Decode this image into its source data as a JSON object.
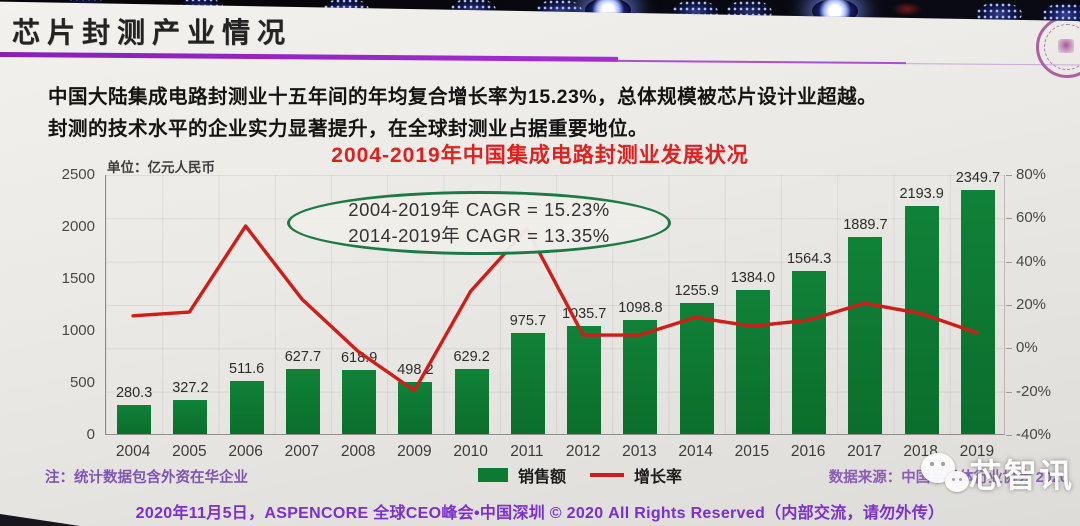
{
  "header": {
    "title": "芯片封测产业情况"
  },
  "intro": {
    "line1": "中国大陆集成电路封测业十五年间的年均复合增长率为15.23%，总体规模被芯片设计业超越。",
    "line2": "封测的技术水平的企业实力显著提升，在全球封测业占据重要地位。"
  },
  "chart_data": {
    "type": "combo-bar-line",
    "title": "2004-2019年中国集成电路封测业发展状况",
    "unit_label": "单位：亿元人民币",
    "categories": [
      "2004",
      "2005",
      "2006",
      "2007",
      "2008",
      "2009",
      "2010",
      "2011",
      "2012",
      "2013",
      "2014",
      "2015",
      "2016",
      "2017",
      "2018",
      "2019"
    ],
    "series": [
      {
        "name": "销售额",
        "type": "bar",
        "axis": "left",
        "color": "#0d7a31",
        "values": [
          280.3,
          327.2,
          511.6,
          627.7,
          618.9,
          498.2,
          629.2,
          975.7,
          1035.7,
          1098.8,
          1255.9,
          1384.0,
          1564.3,
          1889.7,
          2193.9,
          2349.7
        ]
      },
      {
        "name": "增长率",
        "type": "line",
        "axis": "right",
        "color": "#cf1e1a",
        "estimated_from_line": true,
        "values": [
          15.0,
          16.7,
          56.4,
          22.7,
          -1.4,
          -19.5,
          26.3,
          55.1,
          6.1,
          6.1,
          14.3,
          10.2,
          13.0,
          20.8,
          16.1,
          7.1
        ]
      }
    ],
    "left_axis": {
      "min": 0,
      "max": 2500,
      "ticks": [
        0,
        500,
        1000,
        1500,
        2000,
        2500
      ]
    },
    "right_axis": {
      "min": -40,
      "max": 80,
      "ticks": [
        "80%",
        "60%",
        "40%",
        "20%",
        "0%",
        "-20%",
        "-40%"
      ]
    },
    "annotation": {
      "line1": "2004-2019年 CAGR = 15.23%",
      "line2": "2014-2019年 CAGR = 13.35%"
    },
    "legend": {
      "position": "bottom",
      "items": [
        "销售额",
        "增长率"
      ]
    },
    "grid": true,
    "note": "注：统计数据包含外资在华企业",
    "source": "数据来源：中国半导体行业协会 2020"
  },
  "footer": {
    "text": "2020年11月5日，ASPENCORE 全球CEO峰会•中国深圳 © 2020 All Rights Reserved（内部交流，请勿外传）"
  },
  "overlay": {
    "watermark_text": "芯智讯"
  }
}
